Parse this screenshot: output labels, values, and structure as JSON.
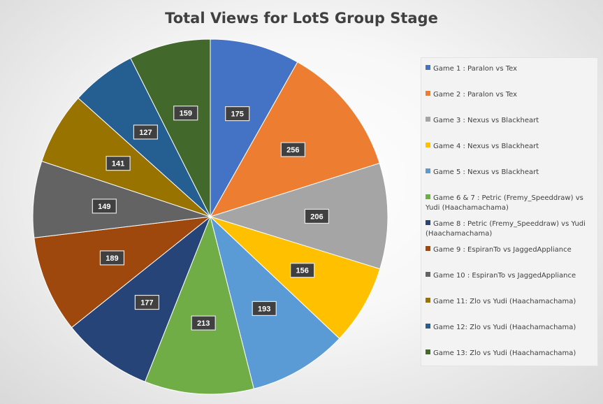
{
  "chart_data": {
    "type": "pie",
    "title": "Total Views for LotS Group Stage",
    "legend_position": "right",
    "slices": [
      {
        "label": "Game 1 : Paralon vs Tex",
        "value": 175,
        "color": "#4472C4"
      },
      {
        "label": "Game 2 : Paralon vs Tex",
        "value": 256,
        "color": "#ED7D31"
      },
      {
        "label": "Game 3 : Nexus vs Blackheart",
        "value": 206,
        "color": "#A5A5A5"
      },
      {
        "label": "Game 4 : Nexus vs Blackheart",
        "value": 156,
        "color": "#FFC000"
      },
      {
        "label": "Game 5 : Nexus vs Blackheart",
        "value": 193,
        "color": "#5B9BD5"
      },
      {
        "label": "Game 6 & 7 : Petric (Fremy_Speeddraw) vs Yudi (Haachamachama)",
        "value": 213,
        "color": "#70AD47"
      },
      {
        "label": "Game 8 : Petric (Fremy_Speeddraw) vs Yudi (Haachamachama)",
        "value": 177,
        "color": "#264478"
      },
      {
        "label": "Game 9 : EspiranTo vs JaggedAppliance",
        "value": 189,
        "color": "#9E480E"
      },
      {
        "label": "Game 10 : EspiranTo vs JaggedAppliance",
        "value": 149,
        "color": "#636363"
      },
      {
        "label": "Game 11: Zlo vs Yudi (Haachamachama)",
        "value": 141,
        "color": "#997300"
      },
      {
        "label": "Game 12: Zlo vs Yudi (Haachamachama)",
        "value": 127,
        "color": "#255E91"
      },
      {
        "label": "Game 13: Zlo vs Yudi (Haachamachama)",
        "value": 159,
        "color": "#43682B"
      }
    ]
  }
}
